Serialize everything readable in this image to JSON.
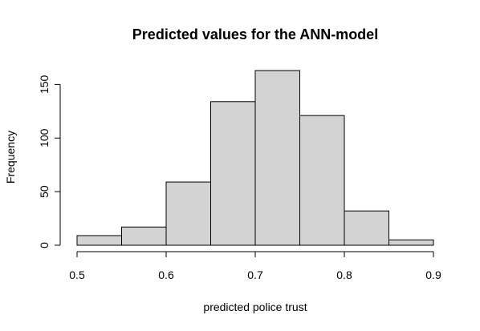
{
  "chart_data": {
    "type": "bar",
    "title": "Predicted values for the ANN-model",
    "xlabel": "predicted police trust",
    "ylabel": "Frequency",
    "bins": [
      {
        "from": 0.5,
        "to": 0.55,
        "count": 9
      },
      {
        "from": 0.55,
        "to": 0.6,
        "count": 17
      },
      {
        "from": 0.6,
        "to": 0.65,
        "count": 59
      },
      {
        "from": 0.65,
        "to": 0.7,
        "count": 134
      },
      {
        "from": 0.7,
        "to": 0.75,
        "count": 163
      },
      {
        "from": 0.75,
        "to": 0.8,
        "count": 121
      },
      {
        "from": 0.8,
        "to": 0.85,
        "count": 32
      },
      {
        "from": 0.85,
        "to": 0.9,
        "count": 5
      }
    ],
    "xlim": [
      0.5,
      0.9
    ],
    "ylim": [
      0,
      163
    ],
    "xticks": [
      0.5,
      0.6,
      0.7,
      0.8,
      0.9
    ],
    "xtick_labels": [
      "0.5",
      "0.6",
      "0.7",
      "0.8",
      "0.9"
    ],
    "yticks": [
      0,
      50,
      100,
      150
    ],
    "ytick_labels": [
      "0",
      "50",
      "100",
      "150"
    ],
    "bar_color": "#d3d3d3",
    "grid": false,
    "legend": "none"
  }
}
